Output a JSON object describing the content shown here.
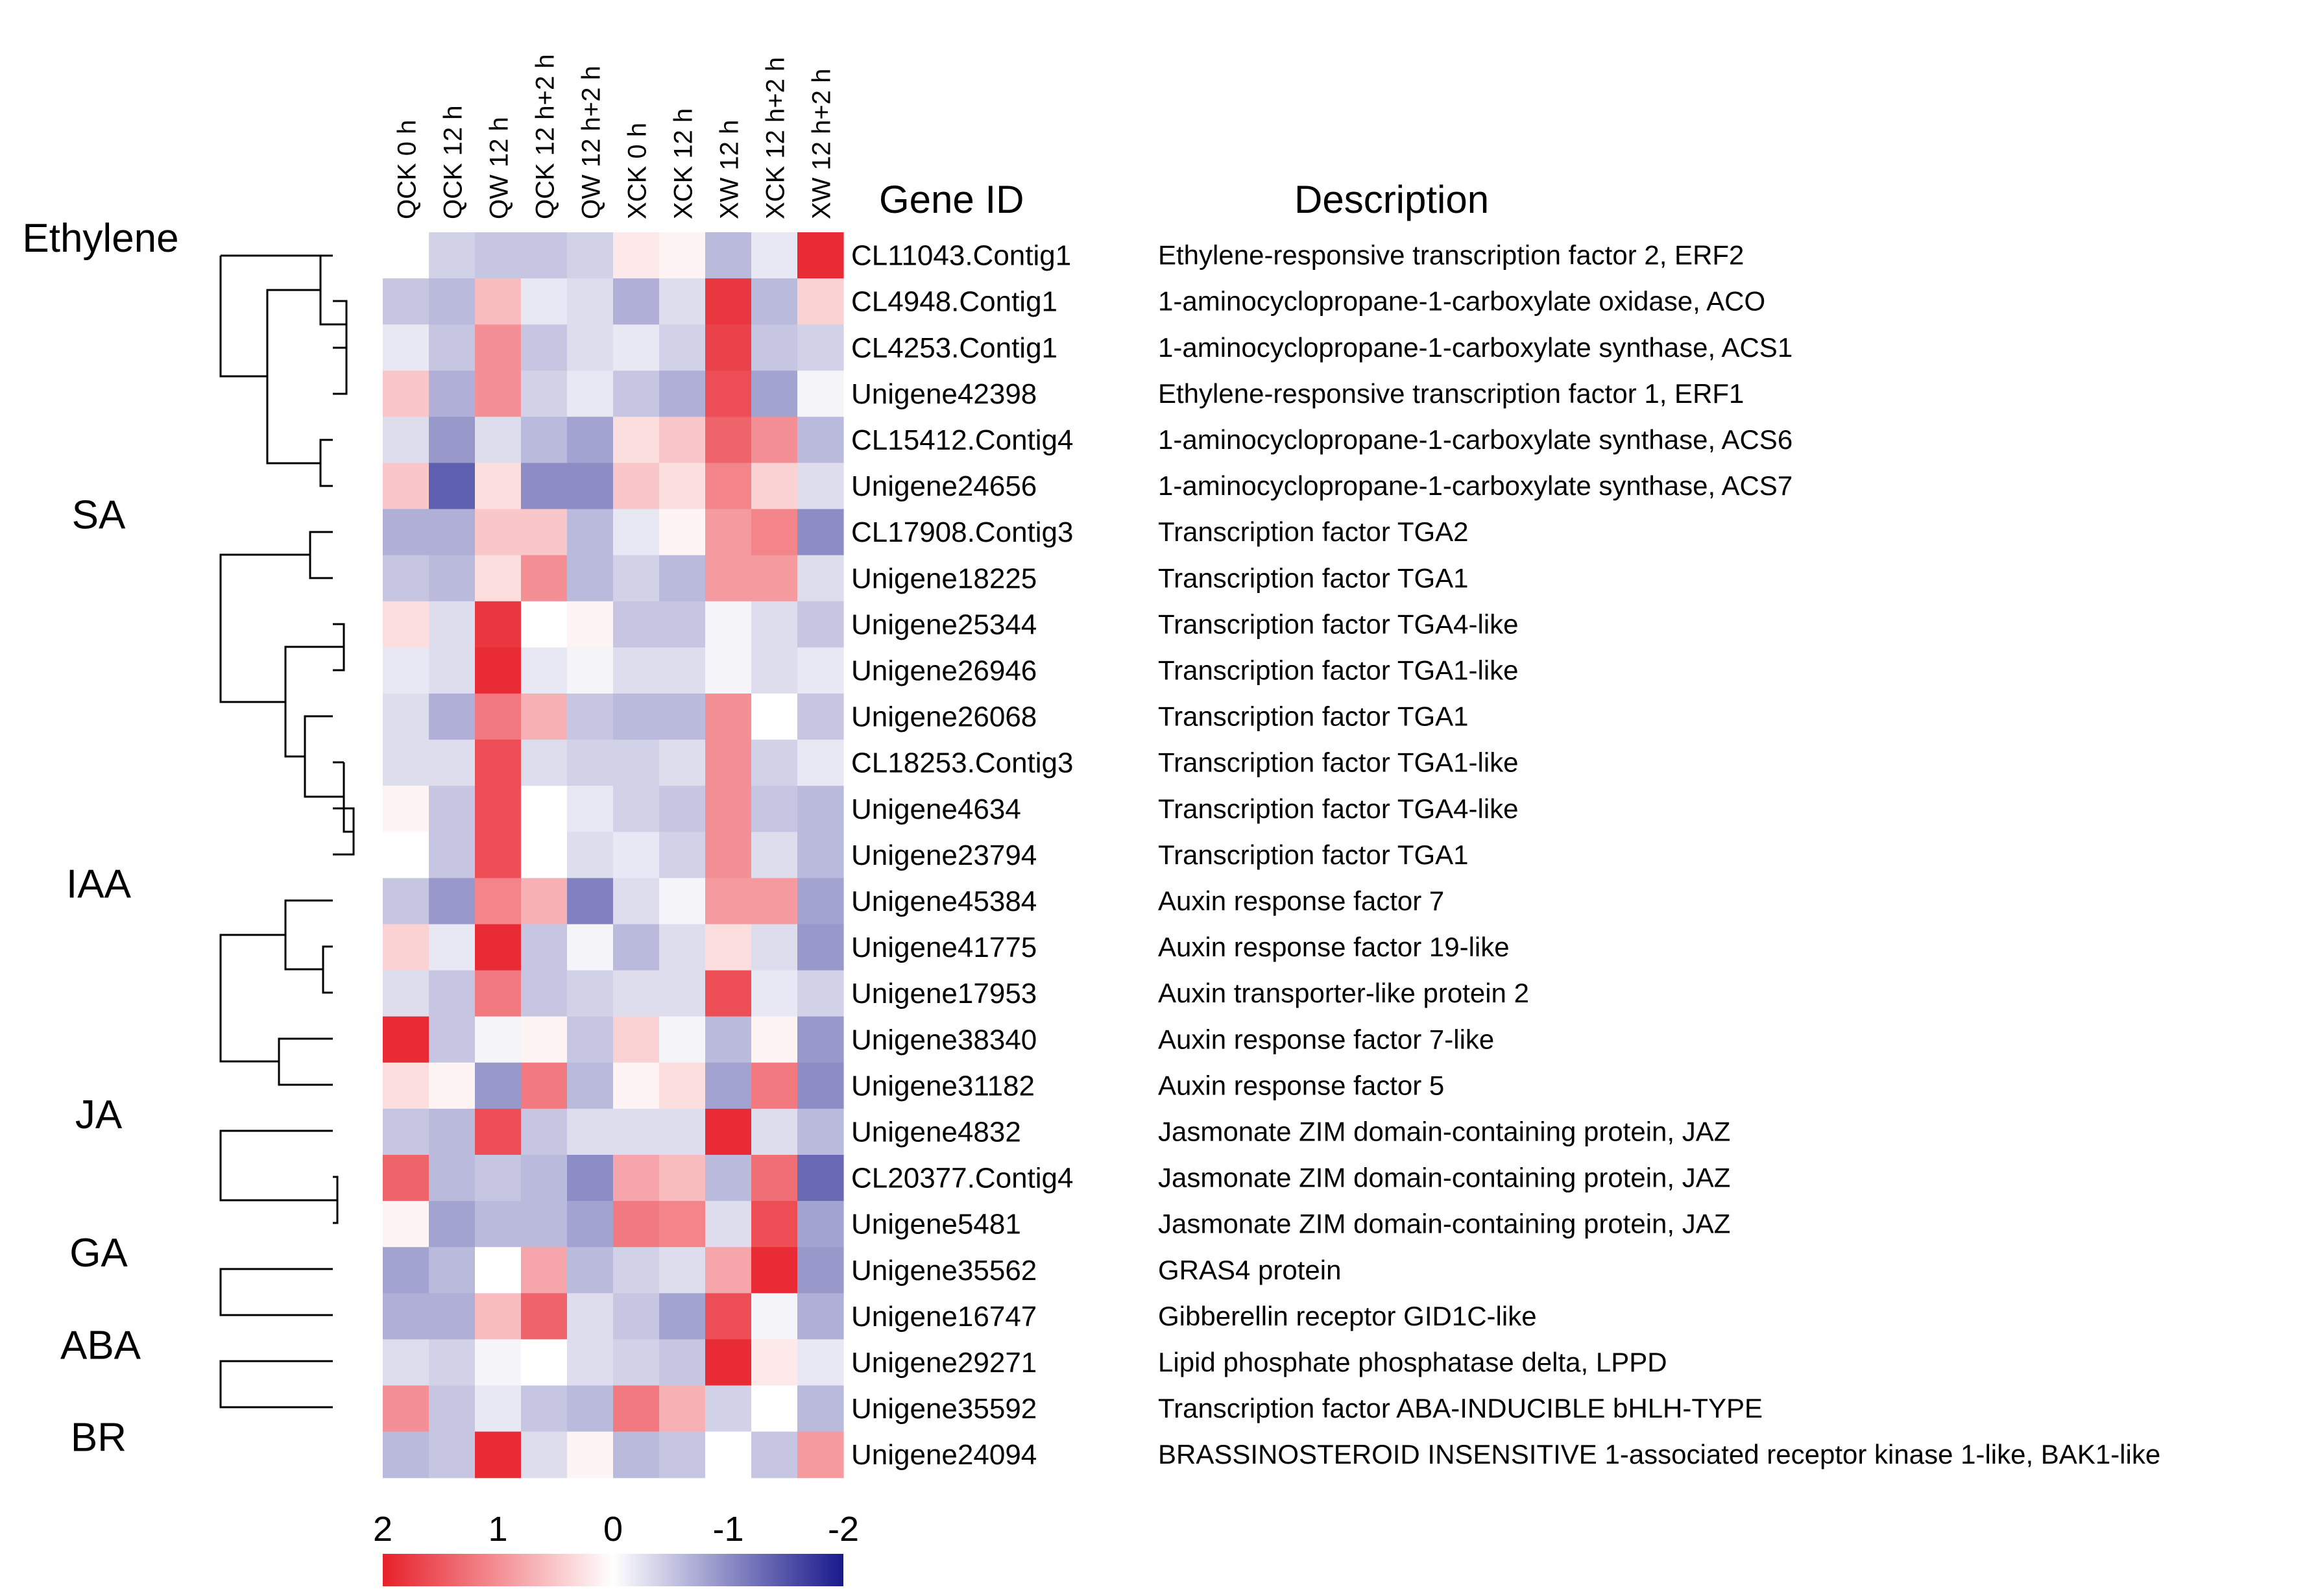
{
  "chart_data": {
    "type": "heatmap",
    "columns": [
      "QCK 0 h",
      "QCK 12 h",
      "QW 12 h",
      "QCK 12 h+2 h",
      "QW 12 h+2 h",
      "XCK 0 h",
      "XCK 12 h",
      "XW 12 h",
      "XCK 12 h+2 h",
      "XW 12 h+2 h"
    ],
    "gene_id_header": "Gene ID",
    "description_header": "Description",
    "rows": [
      {
        "gene": "CL11043.Contig1",
        "description": "Ethylene-responsive transcription factor 2, ERF2",
        "values": [
          0.0,
          -0.4,
          -0.5,
          -0.5,
          -0.4,
          0.2,
          0.1,
          -0.6,
          -0.2,
          1.9
        ]
      },
      {
        "gene": "CL4948.Contig1",
        "description": "1-aminocyclopropane-1-carboxylate oxidase, ACO",
        "values": [
          -0.5,
          -0.6,
          0.6,
          -0.2,
          -0.3,
          -0.7,
          -0.3,
          1.8,
          -0.6,
          0.4
        ]
      },
      {
        "gene": "CL4253.Contig1",
        "description": "1-aminocyclopropane-1-carboxylate synthase, ACS1",
        "values": [
          -0.2,
          -0.5,
          1.0,
          -0.5,
          -0.3,
          -0.2,
          -0.4,
          1.7,
          -0.5,
          -0.4
        ]
      },
      {
        "gene": "Unigene42398",
        "description": "Ethylene-responsive transcription factor 1, ERF1",
        "values": [
          0.5,
          -0.7,
          1.0,
          -0.4,
          -0.2,
          -0.5,
          -0.7,
          1.6,
          -0.8,
          -0.1
        ]
      },
      {
        "gene": "CL15412.Contig4",
        "description": "1-aminocyclopropane-1-carboxylate synthase, ACS6",
        "values": [
          -0.3,
          -0.9,
          -0.3,
          -0.6,
          -0.8,
          0.3,
          0.5,
          1.4,
          1.0,
          -0.6
        ]
      },
      {
        "gene": "Unigene24656",
        "description": "1-aminocyclopropane-1-carboxylate synthase, ACS7",
        "values": [
          0.5,
          -1.4,
          0.3,
          -1.0,
          -1.0,
          0.5,
          0.3,
          1.1,
          0.4,
          -0.3
        ]
      },
      {
        "gene": "CL17908.Contig3",
        "description": "Transcription factor TGA2",
        "values": [
          -0.7,
          -0.7,
          0.5,
          0.5,
          -0.6,
          -0.2,
          0.1,
          0.9,
          1.1,
          -1.0
        ]
      },
      {
        "gene": "Unigene18225",
        "description": "Transcription factor TGA1",
        "values": [
          -0.5,
          -0.6,
          0.3,
          1.0,
          -0.6,
          -0.4,
          -0.6,
          0.9,
          0.9,
          -0.3
        ]
      },
      {
        "gene": "Unigene25344",
        "description": "Transcription factor TGA4-like",
        "values": [
          0.3,
          -0.3,
          1.8,
          0.0,
          0.1,
          -0.5,
          -0.5,
          -0.1,
          -0.3,
          -0.5
        ]
      },
      {
        "gene": "Unigene26946",
        "description": "Transcription factor TGA1-like",
        "values": [
          -0.2,
          -0.3,
          1.9,
          -0.2,
          -0.1,
          -0.3,
          -0.3,
          -0.1,
          -0.3,
          -0.2
        ]
      },
      {
        "gene": "Unigene26068",
        "description": "Transcription factor TGA1",
        "values": [
          -0.3,
          -0.7,
          1.2,
          0.7,
          -0.5,
          -0.6,
          -0.6,
          1.0,
          0.0,
          -0.5
        ]
      },
      {
        "gene": "CL18253.Contig3",
        "description": "Transcription factor TGA1-like",
        "values": [
          -0.3,
          -0.3,
          1.6,
          -0.3,
          -0.4,
          -0.4,
          -0.3,
          1.0,
          -0.4,
          -0.2
        ]
      },
      {
        "gene": "Unigene4634",
        "description": "Transcription factor TGA4-like",
        "values": [
          0.1,
          -0.5,
          1.6,
          0.0,
          -0.2,
          -0.4,
          -0.5,
          1.0,
          -0.5,
          -0.6
        ]
      },
      {
        "gene": "Unigene23794",
        "description": "Transcription factor TGA1",
        "values": [
          0.0,
          -0.5,
          1.6,
          0.0,
          -0.3,
          -0.2,
          -0.4,
          1.0,
          -0.3,
          -0.6
        ]
      },
      {
        "gene": "Unigene45384",
        "description": "Auxin response factor 7",
        "values": [
          -0.5,
          -0.9,
          1.1,
          0.7,
          -1.1,
          -0.3,
          -0.1,
          0.9,
          0.9,
          -0.8
        ]
      },
      {
        "gene": "Unigene41775",
        "description": "Auxin response factor 19-like",
        "values": [
          0.4,
          -0.2,
          1.9,
          -0.5,
          -0.1,
          -0.6,
          -0.3,
          0.3,
          -0.3,
          -0.9
        ]
      },
      {
        "gene": "Unigene17953",
        "description": "Auxin transporter-like protein 2",
        "values": [
          -0.3,
          -0.5,
          1.2,
          -0.5,
          -0.4,
          -0.3,
          -0.3,
          1.6,
          -0.2,
          -0.4
        ]
      },
      {
        "gene": "Unigene38340",
        "description": "Auxin response factor 7-like",
        "values": [
          1.9,
          -0.5,
          -0.1,
          0.1,
          -0.5,
          0.4,
          -0.1,
          -0.6,
          0.1,
          -0.9
        ]
      },
      {
        "gene": "Unigene31182",
        "description": "Auxin response factor 5",
        "values": [
          0.3,
          0.1,
          -0.9,
          1.2,
          -0.6,
          0.1,
          0.3,
          -0.8,
          1.2,
          -1.0
        ]
      },
      {
        "gene": "Unigene4832",
        "description": "Jasmonate ZIM domain-containing protein, JAZ",
        "values": [
          -0.5,
          -0.6,
          1.6,
          -0.5,
          -0.3,
          -0.3,
          -0.3,
          1.9,
          -0.3,
          -0.6
        ]
      },
      {
        "gene": "CL20377.Contig4",
        "description": "Jasmonate ZIM domain-containing protein, JAZ",
        "values": [
          1.4,
          -0.6,
          -0.5,
          -0.6,
          -1.0,
          0.8,
          0.6,
          -0.6,
          1.3,
          -1.3
        ]
      },
      {
        "gene": "Unigene5481",
        "description": "Jasmonate ZIM domain-containing protein, JAZ",
        "values": [
          0.1,
          -0.8,
          -0.6,
          -0.6,
          -0.8,
          1.2,
          1.1,
          -0.3,
          1.6,
          -0.8
        ]
      },
      {
        "gene": "Unigene35562",
        "description": "GRAS4 protein",
        "values": [
          -0.8,
          -0.6,
          0.0,
          0.8,
          -0.6,
          -0.4,
          -0.3,
          0.8,
          1.9,
          -0.9
        ]
      },
      {
        "gene": "Unigene16747",
        "description": "Gibberellin receptor GID1C-like",
        "values": [
          -0.7,
          -0.7,
          0.6,
          1.4,
          -0.3,
          -0.5,
          -0.8,
          1.6,
          -0.1,
          -0.7
        ]
      },
      {
        "gene": "Unigene29271",
        "description": "Lipid phosphate phosphatase delta, LPPD",
        "values": [
          -0.3,
          -0.4,
          -0.1,
          0.0,
          -0.3,
          -0.4,
          -0.5,
          1.9,
          0.2,
          -0.2
        ]
      },
      {
        "gene": "Unigene35592",
        "description": "Transcription factor ABA-INDUCIBLE bHLH-TYPE",
        "values": [
          1.0,
          -0.5,
          -0.2,
          -0.5,
          -0.6,
          1.2,
          0.7,
          -0.4,
          0.0,
          -0.6
        ]
      },
      {
        "gene": "Unigene24094",
        "description": "BRASSINOSTEROID INSENSITIVE 1-associated receptor kinase 1-like, BAK1-like",
        "values": [
          -0.6,
          -0.5,
          1.9,
          -0.3,
          0.1,
          -0.6,
          -0.5,
          0.0,
          -0.5,
          0.9
        ]
      }
    ],
    "groups": [
      {
        "label": "Ethylene",
        "first_row": 0,
        "last_row": 5
      },
      {
        "label": "SA",
        "first_row": 6,
        "last_row": 13
      },
      {
        "label": "IAA",
        "first_row": 14,
        "last_row": 18
      },
      {
        "label": "JA",
        "first_row": 19,
        "last_row": 21
      },
      {
        "label": "GA",
        "first_row": 22,
        "last_row": 23
      },
      {
        "label": "ABA",
        "first_row": 24,
        "last_row": 25
      },
      {
        "label": "BR",
        "first_row": 26,
        "last_row": 26
      }
    ],
    "color_scale": {
      "min": -2,
      "max": 2,
      "colors": {
        "high": "#e8202a",
        "mid": "#ffffff",
        "low": "#1a1a8c"
      },
      "tick_values": [
        2,
        1,
        0,
        -1,
        -2
      ],
      "tick_labels": [
        "2",
        "1",
        "0",
        "-1",
        "-2"
      ]
    }
  }
}
